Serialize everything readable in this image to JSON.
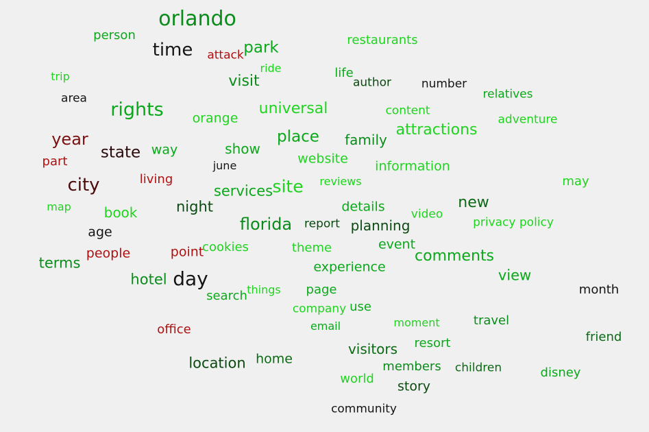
{
  "colors": {
    "background": "#f0f0f0",
    "dark_green": "#007a16",
    "green": "#0aa81a",
    "light_green": "#1fd41f",
    "dark_red": "#7a1010",
    "red": "#b01010",
    "black": "#151515"
  },
  "words": [
    {
      "text": "orlando",
      "color": "#0a8c1a"
    },
    {
      "text": "person",
      "color": "#0aa81a"
    },
    {
      "text": "time",
      "color": "#151515"
    },
    {
      "text": "attack",
      "color": "#b01010"
    },
    {
      "text": "park",
      "color": "#0aa81a"
    },
    {
      "text": "restaurants",
      "color": "#1fd41f"
    },
    {
      "text": "trip",
      "color": "#1fd41f"
    },
    {
      "text": "ride",
      "color": "#1fd41f"
    },
    {
      "text": "life",
      "color": "#0aa81a"
    },
    {
      "text": "author",
      "color": "#0a4a10"
    },
    {
      "text": "number",
      "color": "#151515"
    },
    {
      "text": "visit",
      "color": "#0a8c1a"
    },
    {
      "text": "area",
      "color": "#151515"
    },
    {
      "text": "relatives",
      "color": "#0aa81a"
    },
    {
      "text": "rights",
      "color": "#0aa81a"
    },
    {
      "text": "universal",
      "color": "#1fd41f"
    },
    {
      "text": "content",
      "color": "#1fd41f"
    },
    {
      "text": "orange",
      "color": "#1fd41f"
    },
    {
      "text": "adventure",
      "color": "#1fd41f"
    },
    {
      "text": "attractions",
      "color": "#1fd41f"
    },
    {
      "text": "year",
      "color": "#7a1010"
    },
    {
      "text": "place",
      "color": "#0aa81a"
    },
    {
      "text": "family",
      "color": "#0a8c1a"
    },
    {
      "text": "state",
      "color": "#2a0a0a"
    },
    {
      "text": "way",
      "color": "#0aa81a"
    },
    {
      "text": "show",
      "color": "#0aa81a"
    },
    {
      "text": "website",
      "color": "#1fd41f"
    },
    {
      "text": "part",
      "color": "#b01010"
    },
    {
      "text": "june",
      "color": "#151515"
    },
    {
      "text": "information",
      "color": "#1fd41f"
    },
    {
      "text": "city",
      "color": "#4a0a0a"
    },
    {
      "text": "living",
      "color": "#b01010"
    },
    {
      "text": "site",
      "color": "#1fd41f"
    },
    {
      "text": "reviews",
      "color": "#1fd41f"
    },
    {
      "text": "may",
      "color": "#1fd41f"
    },
    {
      "text": "services",
      "color": "#0aa81a"
    },
    {
      "text": "map",
      "color": "#1fd41f"
    },
    {
      "text": "night",
      "color": "#0a4a10"
    },
    {
      "text": "new",
      "color": "#0a6a14"
    },
    {
      "text": "book",
      "color": "#1fd41f"
    },
    {
      "text": "details",
      "color": "#0aa81a"
    },
    {
      "text": "video",
      "color": "#1fd41f"
    },
    {
      "text": "florida",
      "color": "#0a8c1a"
    },
    {
      "text": "report",
      "color": "#0a4a10"
    },
    {
      "text": "privacy policy",
      "color": "#1fd41f"
    },
    {
      "text": "planning",
      "color": "#0a4a10"
    },
    {
      "text": "age",
      "color": "#151515"
    },
    {
      "text": "event",
      "color": "#0aa81a"
    },
    {
      "text": "people",
      "color": "#b01010"
    },
    {
      "text": "point",
      "color": "#b01010"
    },
    {
      "text": "cookies",
      "color": "#1fd41f"
    },
    {
      "text": "theme",
      "color": "#1fd41f"
    },
    {
      "text": "comments",
      "color": "#0aa81a"
    },
    {
      "text": "terms",
      "color": "#0a8c1a"
    },
    {
      "text": "experience",
      "color": "#0aa81a"
    },
    {
      "text": "view",
      "color": "#0aa81a"
    },
    {
      "text": "hotel",
      "color": "#0a8c1a"
    },
    {
      "text": "day",
      "color": "#151515"
    },
    {
      "text": "things",
      "color": "#1fd41f"
    },
    {
      "text": "page",
      "color": "#0aa81a"
    },
    {
      "text": "month",
      "color": "#151515"
    },
    {
      "text": "search",
      "color": "#0aa81a"
    },
    {
      "text": "company",
      "color": "#1fd41f"
    },
    {
      "text": "use",
      "color": "#0aa81a"
    },
    {
      "text": "email",
      "color": "#0aa81a"
    },
    {
      "text": "moment",
      "color": "#1fd41f"
    },
    {
      "text": "travel",
      "color": "#0a8c1a"
    },
    {
      "text": "office",
      "color": "#b01010"
    },
    {
      "text": "friend",
      "color": "#0a6a14"
    },
    {
      "text": "resort",
      "color": "#0aa81a"
    },
    {
      "text": "visitors",
      "color": "#0a6a14"
    },
    {
      "text": "home",
      "color": "#0a6a14"
    },
    {
      "text": "location",
      "color": "#0a4a10"
    },
    {
      "text": "members",
      "color": "#0a8c1a"
    },
    {
      "text": "children",
      "color": "#0a6a14"
    },
    {
      "text": "disney",
      "color": "#0aa81a"
    },
    {
      "text": "world",
      "color": "#1fd41f"
    },
    {
      "text": "story",
      "color": "#0a4a10"
    },
    {
      "text": "community",
      "color": "#151515"
    }
  ]
}
